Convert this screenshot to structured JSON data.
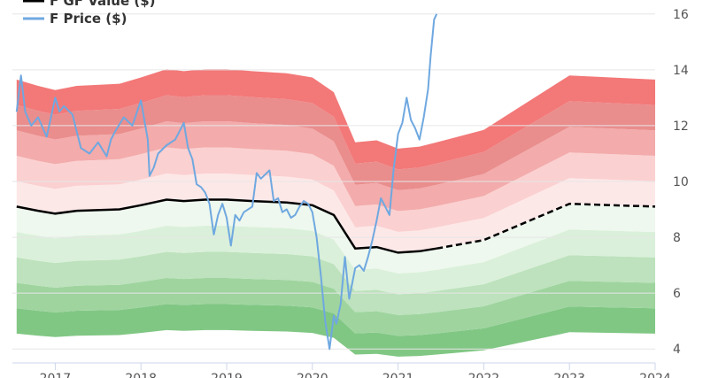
{
  "chart_data": {
    "type": "area",
    "title": "",
    "xlabel": "",
    "ylabel": "",
    "legend": {
      "placement": "top-left",
      "entries": [
        {
          "name": "F GF Value ($)",
          "color": "#000000"
        },
        {
          "name": "F Price ($)",
          "color": "#6fa8e0"
        }
      ]
    },
    "grid": true,
    "x_range": [
      2016.5,
      2024.0
    ],
    "y_range": [
      3.5,
      16.5
    ],
    "x_ticks": [
      {
        "value": 2017,
        "label": "2017"
      },
      {
        "value": 2018,
        "label": "2018"
      },
      {
        "value": 2019,
        "label": "2019"
      },
      {
        "value": 2020,
        "label": "2020"
      },
      {
        "value": 2021,
        "label": "2021"
      },
      {
        "value": 2022,
        "label": "2022"
      },
      {
        "value": 2023,
        "label": "2023"
      },
      {
        "value": 2024,
        "label": "2024"
      }
    ],
    "y_ticks": [
      {
        "value": 4,
        "label": "4"
      },
      {
        "value": 6,
        "label": "6"
      },
      {
        "value": 8,
        "label": "8"
      },
      {
        "value": 10,
        "label": "10"
      },
      {
        "value": 12,
        "label": "12"
      },
      {
        "value": 14,
        "label": "14"
      },
      {
        "value": 16,
        "label": "16"
      }
    ],
    "gf_value": {
      "x": [
        2016.55,
        2016.8,
        2017.0,
        2017.25,
        2017.75,
        2018.0,
        2018.3,
        2018.5,
        2018.75,
        2019.0,
        2019.3,
        2019.7,
        2020.0,
        2020.25,
        2020.5,
        2020.75,
        2021.0,
        2021.25,
        2021.45,
        2022.0,
        2023.0,
        2024.0
      ],
      "y": [
        9.1,
        8.95,
        8.85,
        8.95,
        9.0,
        9.15,
        9.35,
        9.3,
        9.35,
        9.35,
        9.3,
        9.25,
        9.15,
        8.8,
        7.6,
        7.65,
        7.45,
        7.5,
        7.6,
        7.9,
        9.2,
        9.1
      ],
      "projected_from": 2021.45
    },
    "band_multipliers": [
      0.5,
      0.6,
      0.7,
      0.8,
      0.9,
      1.0,
      1.1,
      1.2,
      1.3,
      1.4,
      1.5
    ],
    "band_colors": [
      "#81c784",
      "#9fd49f",
      "#bde2bd",
      "#daf0da",
      "#eef8ee",
      "#fde8e8",
      "#fbd0d0",
      "#f3abab",
      "#ea8d8d",
      "#f37878"
    ],
    "price": {
      "x": [
        2016.55,
        2016.6,
        2016.65,
        2016.72,
        2016.8,
        2016.9,
        2017.0,
        2017.05,
        2017.1,
        2017.2,
        2017.3,
        2017.4,
        2017.5,
        2017.6,
        2017.65,
        2017.7,
        2017.8,
        2017.9,
        2018.0,
        2018.08,
        2018.1,
        2018.15,
        2018.2,
        2018.3,
        2018.4,
        2018.5,
        2018.55,
        2018.6,
        2018.65,
        2018.7,
        2018.75,
        2018.8,
        2018.85,
        2018.9,
        2018.95,
        2019.0,
        2019.05,
        2019.1,
        2019.15,
        2019.2,
        2019.3,
        2019.35,
        2019.4,
        2019.5,
        2019.55,
        2019.6,
        2019.65,
        2019.7,
        2019.75,
        2019.8,
        2019.85,
        2019.9,
        2019.95,
        2020.0,
        2020.05,
        2020.1,
        2020.15,
        2020.2,
        2020.25,
        2020.28,
        2020.33,
        2020.38,
        2020.43,
        2020.5,
        2020.55,
        2020.6,
        2020.65,
        2020.7,
        2020.75,
        2020.8,
        2020.85,
        2020.9,
        2020.95,
        2021.0,
        2021.05,
        2021.1,
        2021.15,
        2021.2,
        2021.25,
        2021.3,
        2021.35,
        2021.38,
        2021.42,
        2021.45
      ],
      "y": [
        12.5,
        13.8,
        12.5,
        12.0,
        12.3,
        11.6,
        13.0,
        12.5,
        12.7,
        12.4,
        11.2,
        11.0,
        11.4,
        10.9,
        11.5,
        11.8,
        12.3,
        12.0,
        12.9,
        11.5,
        10.2,
        10.5,
        11.0,
        11.3,
        11.5,
        12.1,
        11.2,
        10.8,
        9.9,
        9.8,
        9.6,
        9.2,
        8.1,
        8.8,
        9.2,
        8.7,
        7.7,
        8.8,
        8.6,
        8.9,
        9.1,
        10.3,
        10.1,
        10.4,
        9.3,
        9.4,
        8.9,
        9.0,
        8.7,
        8.8,
        9.1,
        9.3,
        9.2,
        8.9,
        8.0,
        6.6,
        5.0,
        4.0,
        5.2,
        4.9,
        5.6,
        7.3,
        5.8,
        6.9,
        7.0,
        6.8,
        7.3,
        7.9,
        8.6,
        9.4,
        9.1,
        8.8,
        10.5,
        11.7,
        12.1,
        13.0,
        12.2,
        11.9,
        11.5,
        12.3,
        13.3,
        14.5,
        15.8,
        16.0
      ]
    }
  }
}
